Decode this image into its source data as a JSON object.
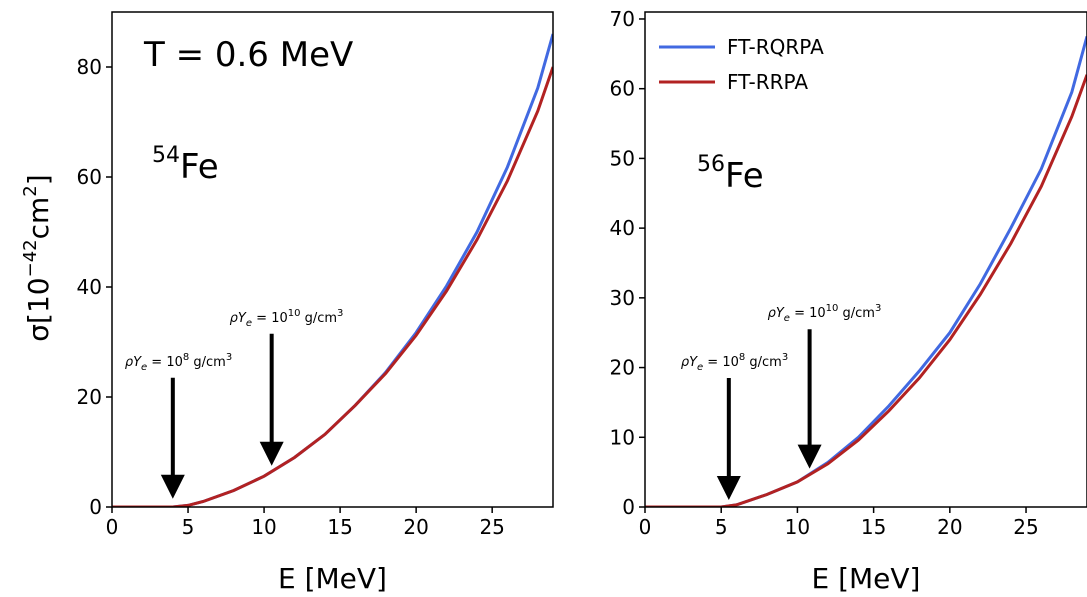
{
  "figure": {
    "ylabel": "σ[10⁻⁴²cm²]",
    "legend": {
      "placement": "top-left",
      "entries": [
        {
          "name": "FT-RQRPA",
          "color": "#4169e1"
        },
        {
          "name": "FT-RRPA",
          "color": "#b22222"
        }
      ]
    }
  },
  "chart_data": [
    {
      "type": "line",
      "xlabel": "E [MeV]",
      "ylabel": "σ[10⁻⁴²cm²]",
      "xlim": [
        0,
        29
      ],
      "ylim": [
        0,
        90
      ],
      "xticks": [
        "0",
        "5",
        "10",
        "15",
        "20",
        "25"
      ],
      "yticks": [
        "0",
        "20",
        "40",
        "60",
        "80"
      ],
      "temperature_label": "T = 0.6 MeV",
      "nucleus": {
        "mass": "54",
        "symbol": "Fe"
      },
      "annotations": [
        {
          "text": "ρY",
          "sub": "e",
          "mid": " = 10",
          "sup": "8",
          "unit": " g/cm",
          "unitsup": "3",
          "arrow_x": 4.0,
          "arrow_from": 23.5,
          "arrow_to": 1.5
        },
        {
          "text": "ρY",
          "sub": "e",
          "mid": " = 10",
          "sup": "10",
          "unit": " g/cm",
          "unitsup": "3",
          "arrow_x": 10.5,
          "arrow_from": 31.5,
          "arrow_to": 7.5
        }
      ],
      "grid": false,
      "series": [
        {
          "name": "FT-RQRPA",
          "color": "#4169e1",
          "x": [
            0,
            4,
            5,
            6,
            8,
            10,
            12,
            14,
            16,
            18,
            20,
            22,
            24,
            26,
            28,
            29
          ],
          "y": [
            0,
            0.0,
            0.3,
            1.0,
            3.0,
            5.6,
            9.0,
            13.2,
            18.5,
            24.5,
            31.7,
            40.2,
            50.0,
            61.8,
            76.2,
            86.0
          ]
        },
        {
          "name": "FT-RRPA",
          "color": "#b22222",
          "x": [
            0,
            4,
            5,
            6,
            8,
            10,
            12,
            14,
            16,
            18,
            20,
            22,
            24,
            26,
            28,
            29
          ],
          "y": [
            0,
            0.0,
            0.3,
            1.0,
            3.0,
            5.6,
            9.0,
            13.2,
            18.5,
            24.3,
            31.2,
            39.3,
            48.6,
            59.3,
            72.0,
            80.0
          ]
        }
      ]
    },
    {
      "type": "line",
      "xlabel": "E [MeV]",
      "xlim": [
        0,
        29
      ],
      "ylim": [
        0,
        71
      ],
      "xticks": [
        "0",
        "5",
        "10",
        "15",
        "20",
        "25"
      ],
      "yticks": [
        "0",
        "10",
        "20",
        "30",
        "40",
        "50",
        "60",
        "70"
      ],
      "nucleus": {
        "mass": "56",
        "symbol": "Fe"
      },
      "annotations": [
        {
          "text": "ρY",
          "sub": "e",
          "mid": " = 10",
          "sup": "8",
          "unit": " g/cm",
          "unitsup": "3",
          "arrow_x": 5.5,
          "arrow_from": 18.5,
          "arrow_to": 1.0
        },
        {
          "text": "ρY",
          "sub": "e",
          "mid": " = 10",
          "sup": "10",
          "unit": " g/cm",
          "unitsup": "3",
          "arrow_x": 10.8,
          "arrow_from": 25.5,
          "arrow_to": 5.5
        }
      ],
      "grid": false,
      "legend": "top-left",
      "series": [
        {
          "name": "FT-RQRPA",
          "color": "#4169e1",
          "x": [
            0,
            5,
            6,
            8,
            10,
            12,
            14,
            16,
            18,
            20,
            22,
            24,
            26,
            28,
            29
          ],
          "y": [
            0,
            0.0,
            0.3,
            1.8,
            3.6,
            6.4,
            10.0,
            14.5,
            19.5,
            25.0,
            32.0,
            40.0,
            48.5,
            59.5,
            67.5
          ]
        },
        {
          "name": "FT-RRPA",
          "color": "#b22222",
          "x": [
            0,
            5,
            6,
            8,
            10,
            12,
            14,
            16,
            18,
            20,
            22,
            24,
            26,
            28,
            29
          ],
          "y": [
            0,
            0.0,
            0.3,
            1.8,
            3.6,
            6.2,
            9.6,
            13.8,
            18.5,
            24.0,
            30.5,
            37.8,
            46.0,
            56.0,
            62.0
          ]
        }
      ]
    }
  ]
}
